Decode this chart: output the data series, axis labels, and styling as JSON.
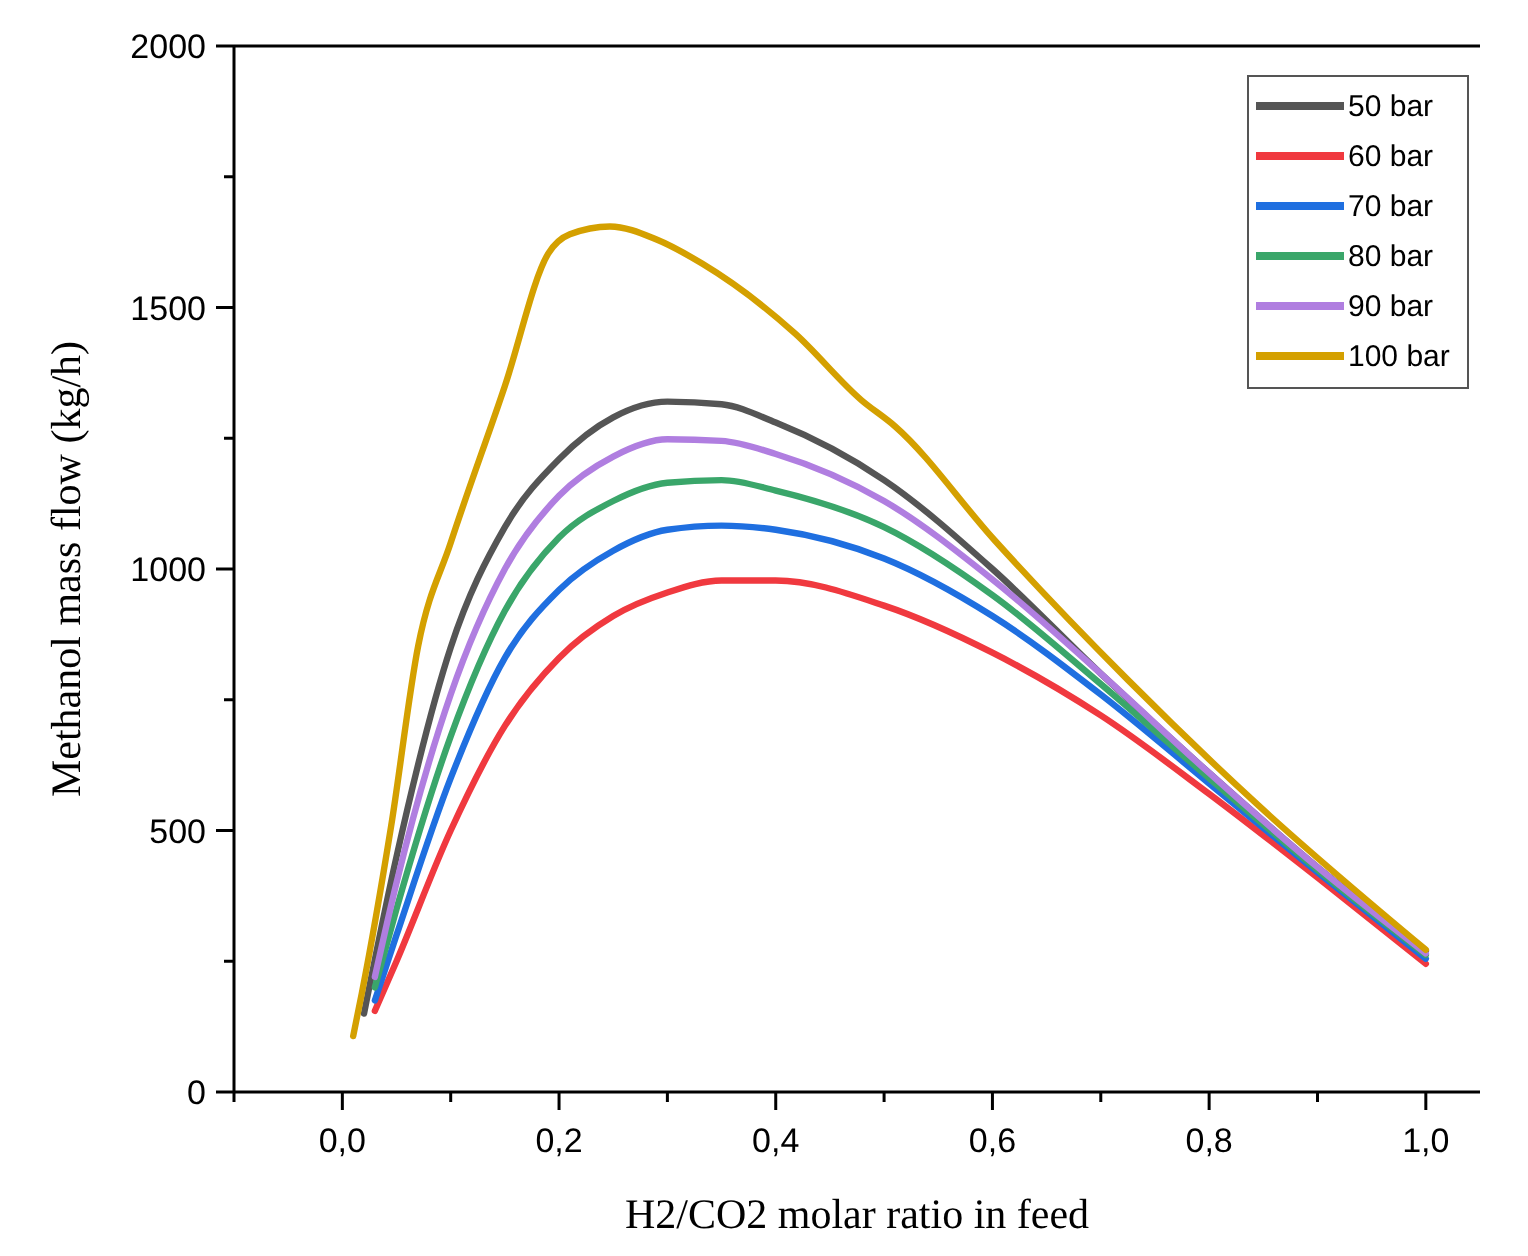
{
  "chart_data": {
    "type": "line",
    "xlabel": "H2/CO2 molar ratio in feed",
    "ylabel": "Methanol mass flow (kg/h)",
    "xlim": [
      -0.1,
      1.05
    ],
    "ylim": [
      0,
      2000
    ],
    "xticks": [
      {
        "value": -0.1,
        "label": null
      },
      {
        "value": 0,
        "label": "0,0"
      },
      {
        "value": 0.1,
        "label": null
      },
      {
        "value": 0.2,
        "label": "0,2"
      },
      {
        "value": 0.3,
        "label": null
      },
      {
        "value": 0.4,
        "label": "0,4"
      },
      {
        "value": 0.5,
        "label": null
      },
      {
        "value": 0.6,
        "label": "0,6"
      },
      {
        "value": 0.7,
        "label": null
      },
      {
        "value": 0.8,
        "label": "0,8"
      },
      {
        "value": 0.9,
        "label": null
      },
      {
        "value": 1,
        "label": "1,0"
      }
    ],
    "yticks": [
      0,
      {
        "value": 250,
        "label": null
      },
      500,
      {
        "value": 750,
        "label": null
      },
      1000,
      {
        "value": 1250,
        "label": null
      },
      1500,
      {
        "value": 1750,
        "label": null
      },
      2000
    ],
    "grid": false,
    "legend": "top right",
    "marker": "none",
    "line_style": "solid",
    "series": [
      {
        "name": "50 bar",
        "color": "#555555",
        "x": [
          0.02,
          0.05,
          0.1,
          0.15,
          0.2,
          0.25,
          0.3,
          0.35,
          0.4,
          0.5,
          0.6,
          0.7,
          0.8,
          0.9,
          1.0
        ],
        "values": [
          150,
          450,
          850,
          1080,
          1210,
          1290,
          1320,
          1315,
          1280,
          1170,
          1000,
          800,
          610,
          430,
          270
        ]
      },
      {
        "name": "60 bar",
        "color": "#f0393f",
        "x": [
          0.03,
          0.05,
          0.1,
          0.15,
          0.2,
          0.25,
          0.3,
          0.35,
          0.4,
          0.5,
          0.6,
          0.7,
          0.8,
          0.9,
          1.0
        ],
        "values": [
          155,
          250,
          500,
          700,
          830,
          910,
          955,
          978,
          978,
          930,
          840,
          720,
          570,
          410,
          245
        ]
      },
      {
        "name": "70 bar",
        "color": "#1f6fe0",
        "x": [
          0.03,
          0.05,
          0.1,
          0.15,
          0.2,
          0.25,
          0.3,
          0.35,
          0.4,
          0.5,
          0.6,
          0.7,
          0.8,
          0.9,
          1.0
        ],
        "values": [
          175,
          300,
          600,
          830,
          960,
          1035,
          1075,
          1083,
          1075,
          1020,
          910,
          760,
          590,
          420,
          255
        ]
      },
      {
        "name": "80 bar",
        "color": "#3aa66a",
        "x": [
          0.03,
          0.05,
          0.1,
          0.15,
          0.2,
          0.25,
          0.3,
          0.35,
          0.4,
          0.5,
          0.6,
          0.7,
          0.8,
          0.9,
          1.0
        ],
        "values": [
          200,
          350,
          680,
          920,
          1060,
          1130,
          1165,
          1170,
          1150,
          1080,
          950,
          780,
          600,
          425,
          262
        ]
      },
      {
        "name": "90 bar",
        "color": "#b07ee0",
        "x": [
          0.03,
          0.05,
          0.1,
          0.15,
          0.2,
          0.25,
          0.3,
          0.35,
          0.4,
          0.5,
          0.6,
          0.7,
          0.8,
          0.9,
          1.0
        ],
        "values": [
          220,
          400,
          760,
          1000,
          1140,
          1215,
          1248,
          1245,
          1220,
          1130,
          980,
          800,
          610,
          430,
          265
        ]
      },
      {
        "name": "100 bar",
        "color": "#d4a000",
        "x": [
          0.01,
          0.018,
          0.045,
          0.07,
          0.1,
          0.15,
          0.19,
          0.21,
          0.247,
          0.29,
          0.332,
          0.418,
          0.479,
          0.51,
          0.602,
          0.725,
          0.846,
          1.0
        ],
        "values": [
          107,
          189,
          508,
          853,
          1050,
          1350,
          1603,
          1640,
          1655,
          1630,
          1584,
          1450,
          1323,
          1273,
          1055,
          788,
          547,
          272
        ]
      }
    ]
  }
}
